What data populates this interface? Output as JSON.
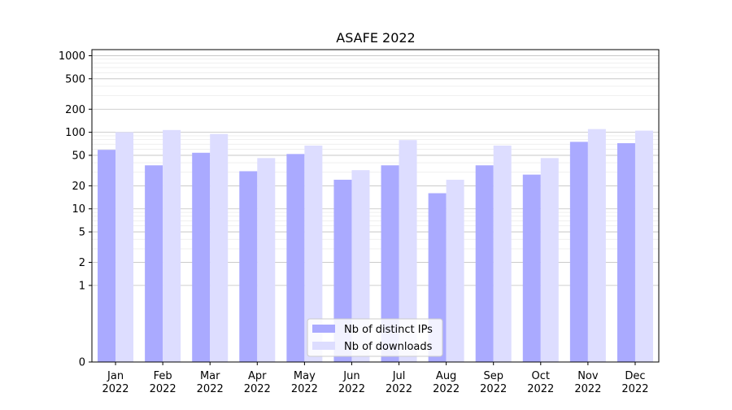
{
  "chart_data": {
    "type": "bar",
    "title": "ASAFE 2022",
    "xlabel": "",
    "ylabel": "",
    "yscale": "symlog",
    "ylim": [
      0,
      1200
    ],
    "yticks": [
      0,
      1,
      2,
      5,
      10,
      20,
      50,
      100,
      200,
      500,
      1000
    ],
    "ytick_labels": [
      "0",
      "1",
      "2",
      "5",
      "10",
      "20",
      "50",
      "100",
      "200",
      "500",
      "1000"
    ],
    "categories": [
      [
        "Jan",
        "2022"
      ],
      [
        "Feb",
        "2022"
      ],
      [
        "Mar",
        "2022"
      ],
      [
        "Apr",
        "2022"
      ],
      [
        "May",
        "2022"
      ],
      [
        "Jun",
        "2022"
      ],
      [
        "Jul",
        "2022"
      ],
      [
        "Aug",
        "2022"
      ],
      [
        "Sep",
        "2022"
      ],
      [
        "Oct",
        "2022"
      ],
      [
        "Nov",
        "2022"
      ],
      [
        "Dec",
        "2022"
      ]
    ],
    "series": [
      {
        "name": "Nb of distinct IPs",
        "color": "#aaaaff",
        "values": [
          59,
          37,
          54,
          31,
          52,
          24,
          37,
          16,
          37,
          28,
          75,
          72
        ]
      },
      {
        "name": "Nb of downloads",
        "color": "#ddddff",
        "values": [
          100,
          107,
          95,
          46,
          67,
          32,
          79,
          24,
          67,
          46,
          110,
          105
        ]
      }
    ],
    "grid": true,
    "legend_position": "lower-center"
  }
}
